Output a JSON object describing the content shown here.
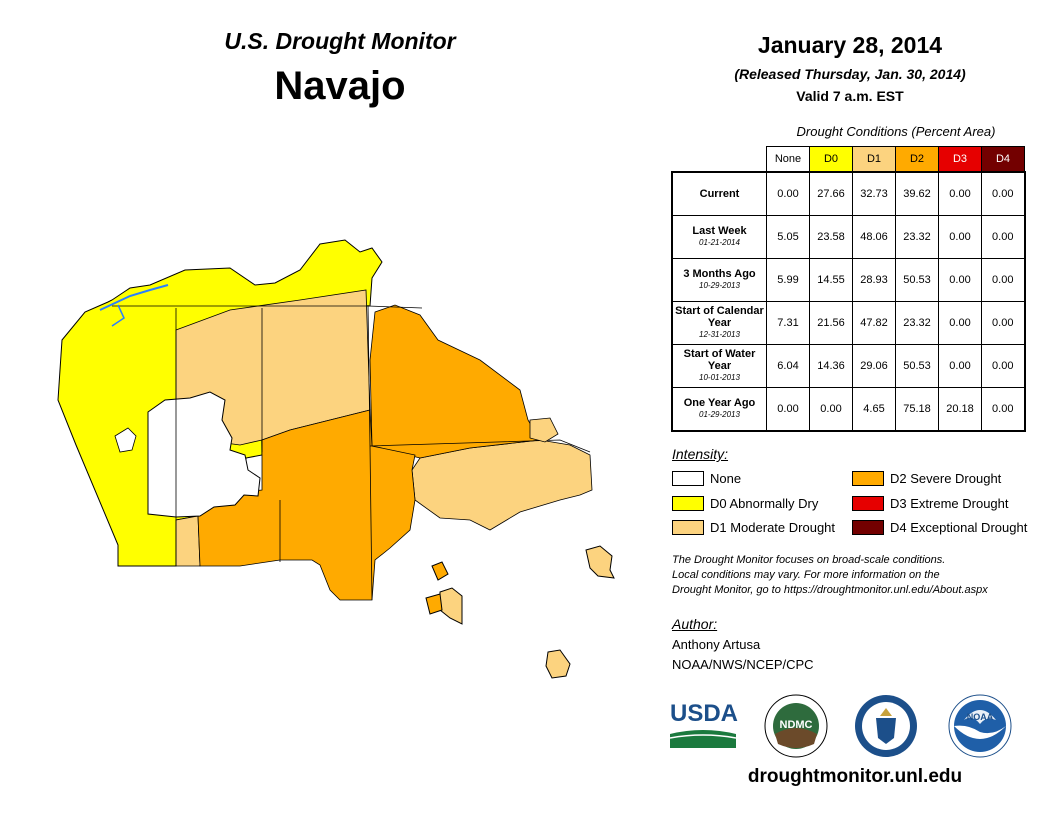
{
  "header": {
    "subtitle": "U.S. Drought Monitor",
    "region": "Navajo"
  },
  "date": {
    "main": "January 28, 2014",
    "released": "(Released Thursday, Jan. 30, 2014)",
    "valid": "Valid 7 a.m. EST"
  },
  "table": {
    "caption": "Drought Conditions (Percent Area)",
    "columns": [
      "None",
      "D0",
      "D1",
      "D2",
      "D3",
      "D4"
    ],
    "rows": [
      {
        "label": "Current",
        "date": "",
        "values": [
          "0.00",
          "27.66",
          "32.73",
          "39.62",
          "0.00",
          "0.00"
        ]
      },
      {
        "label": "Last Week",
        "date": "01-21-2014",
        "values": [
          "5.05",
          "23.58",
          "48.06",
          "23.32",
          "0.00",
          "0.00"
        ]
      },
      {
        "label": "3 Months Ago",
        "date": "10-29-2013",
        "values": [
          "5.99",
          "14.55",
          "28.93",
          "50.53",
          "0.00",
          "0.00"
        ]
      },
      {
        "label": "Start of Calendar Year",
        "date": "12-31-2013",
        "values": [
          "7.31",
          "21.56",
          "47.82",
          "23.32",
          "0.00",
          "0.00"
        ]
      },
      {
        "label": "Start of Water Year",
        "date": "10-01-2013",
        "values": [
          "6.04",
          "14.36",
          "29.06",
          "50.53",
          "0.00",
          "0.00"
        ]
      },
      {
        "label": "One Year Ago",
        "date": "01-29-2013",
        "values": [
          "0.00",
          "0.00",
          "4.65",
          "75.18",
          "20.18",
          "0.00"
        ]
      }
    ]
  },
  "legend": {
    "title": "Intensity:",
    "items": [
      {
        "label": "None",
        "color": "#ffffff"
      },
      {
        "label": "D0 Abnormally Dry",
        "color": "#ffff00"
      },
      {
        "label": "D1 Moderate Drought",
        "color": "#fcd37f"
      },
      {
        "label": "D2 Severe Drought",
        "color": "#ffaa00"
      },
      {
        "label": "D3 Extreme Drought",
        "color": "#e60000"
      },
      {
        "label": "D4 Exceptional Drought",
        "color": "#730000"
      }
    ]
  },
  "note": {
    "line1": "The Drought Monitor focuses on broad-scale conditions.",
    "line2": "Local conditions may vary. For more information on the",
    "line3": "Drought Monitor, go to https://droughtmonitor.unl.edu/About.aspx"
  },
  "author": {
    "title": "Author:",
    "name": "Anthony Artusa",
    "org": "NOAA/NWS/NCEP/CPC"
  },
  "logos": {
    "usda": "USDA",
    "ndmc": "NDMC",
    "noaa": "NOAA"
  },
  "url": "droughtmonitor.unl.edu"
}
